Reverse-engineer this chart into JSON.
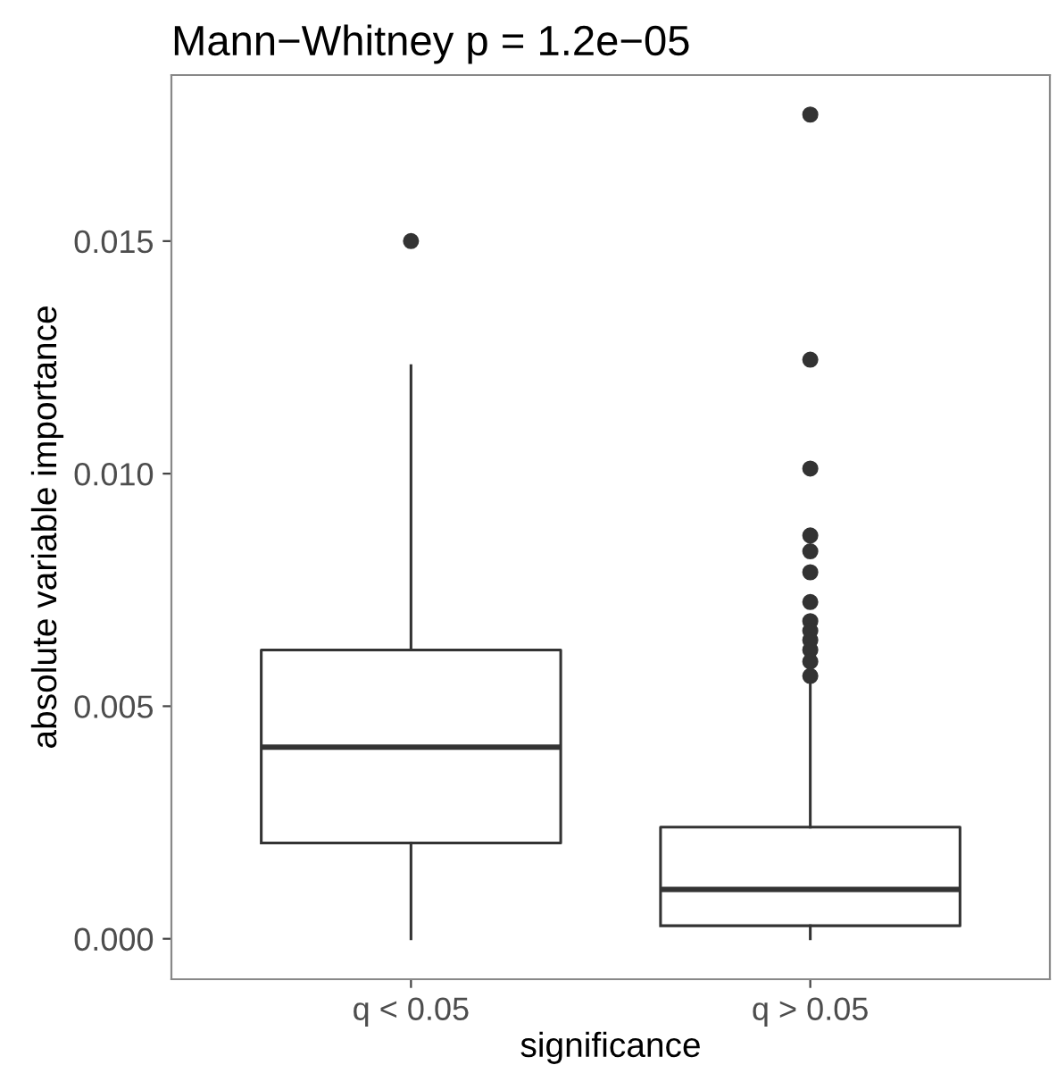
{
  "chart_data": {
    "type": "box",
    "title": "Mann−Whitney p = 1.2e−05",
    "xlabel": "significance",
    "ylabel": "absolute variable importance",
    "categories": [
      "q < 0.05",
      "q > 0.05"
    ],
    "boxes": [
      {
        "low": 0.0,
        "q1": 0.00206,
        "median": 0.00412,
        "q3": 0.00621,
        "high": 0.01232,
        "outliers": [
          0.015
        ]
      },
      {
        "low": 0.0,
        "q1": 0.00028,
        "median": 0.00106,
        "q3": 0.0024,
        "high": 0.00548,
        "outliers": [
          0.01772,
          0.01245,
          0.01011,
          0.00867,
          0.00833,
          0.00788,
          0.00724,
          0.00683,
          0.00662,
          0.00642,
          0.00621,
          0.00596,
          0.00565
        ]
      }
    ],
    "ylim": [
      -0.00087,
      0.01857
    ],
    "yticks": [
      {
        "value": 0,
        "label": "0.000"
      },
      {
        "value": 0.005,
        "label": "0.005"
      },
      {
        "value": 0.01,
        "label": "0.010"
      },
      {
        "value": 0.015,
        "label": "0.015"
      }
    ],
    "grid": false,
    "legend": false
  }
}
